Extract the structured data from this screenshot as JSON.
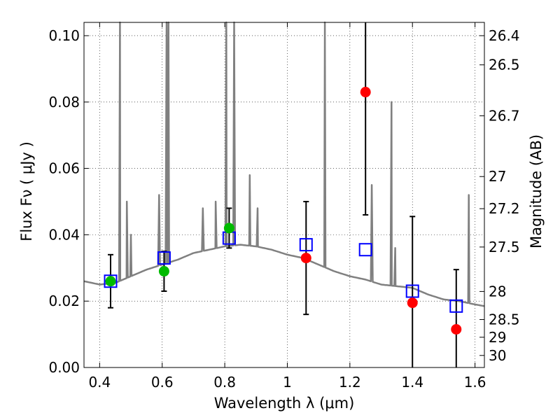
{
  "chart_data": {
    "type": "scatter",
    "title": "",
    "xlabel": "Wavelength  λ (μm)",
    "ylabel": "Flux  Fν ( μJy )",
    "ylabel_right": "Magnitude (AB)",
    "xlim": [
      0.35,
      1.63
    ],
    "ylim": [
      0.0,
      0.104
    ],
    "grid": true,
    "x_ticks": [
      "0.4",
      "0.6",
      "0.8",
      "1",
      "1.2",
      "1.4",
      "1.6"
    ],
    "x_tick_values": [
      0.4,
      0.6,
      0.8,
      1.0,
      1.2,
      1.4,
      1.6
    ],
    "y_ticks": [
      "0.00",
      "0.02",
      "0.04",
      "0.06",
      "0.08",
      "0.10"
    ],
    "y_tick_values": [
      0.0,
      0.02,
      0.04,
      0.06,
      0.08,
      0.1
    ],
    "right_ticks": [
      "26.4",
      "26.5",
      "26.7",
      "27",
      "27.2",
      "27.5",
      "28",
      "28.5",
      "29",
      "30"
    ],
    "right_tick_values": [
      26.4,
      26.5,
      26.7,
      27.0,
      27.2,
      27.5,
      28.0,
      28.5,
      29.0,
      30.0
    ],
    "colors": {
      "model": "#808080",
      "model_photometry": "#0000ff",
      "optical_observed": "#00bb00",
      "nir_observed": "#ff0000",
      "errorbar": "#000000"
    },
    "model_photometry": {
      "x": [
        0.435,
        0.606,
        0.814,
        1.06,
        1.25,
        1.4,
        1.54
      ],
      "y": [
        0.026,
        0.033,
        0.039,
        0.037,
        0.0355,
        0.023,
        0.0185
      ]
    },
    "observed_optical": {
      "x": [
        0.435,
        0.606,
        0.814
      ],
      "y": [
        0.026,
        0.029,
        0.042
      ],
      "err_low": [
        0.018,
        0.023,
        0.036
      ],
      "err_high": [
        0.034,
        0.035,
        0.048
      ]
    },
    "observed_nir": {
      "x": [
        1.06,
        1.25,
        1.4,
        1.54
      ],
      "y": [
        0.033,
        0.083,
        0.0195,
        0.0115
      ],
      "err_low": [
        0.016,
        0.046,
        0.0,
        0.0
      ],
      "err_high": [
        0.05,
        0.104,
        0.0455,
        0.0295
      ]
    },
    "model_continuum": {
      "x": [
        0.35,
        0.4,
        0.45,
        0.5,
        0.55,
        0.6,
        0.65,
        0.7,
        0.75,
        0.8,
        0.85,
        0.9,
        0.95,
        1.0,
        1.05,
        1.1,
        1.15,
        1.2,
        1.25,
        1.3,
        1.35,
        1.4,
        1.45,
        1.5,
        1.55,
        1.6,
        1.63
      ],
      "y": [
        0.026,
        0.025,
        0.0255,
        0.0275,
        0.0295,
        0.031,
        0.0325,
        0.0345,
        0.0355,
        0.0365,
        0.037,
        0.0365,
        0.0355,
        0.034,
        0.033,
        0.031,
        0.029,
        0.0275,
        0.0265,
        0.025,
        0.0245,
        0.024,
        0.022,
        0.0205,
        0.02,
        0.019,
        0.0185
      ]
    },
    "model_lines": [
      {
        "x": 0.465,
        "peak": 0.105
      },
      {
        "x": 0.487,
        "peak": 0.05
      },
      {
        "x": 0.5,
        "peak": 0.04
      },
      {
        "x": 0.59,
        "peak": 0.052
      },
      {
        "x": 0.614,
        "peak": 0.105
      },
      {
        "x": 0.62,
        "peak": 0.105
      },
      {
        "x": 0.73,
        "peak": 0.048
      },
      {
        "x": 0.771,
        "peak": 0.05
      },
      {
        "x": 0.805,
        "peak": 0.105
      },
      {
        "x": 0.83,
        "peak": 0.105
      },
      {
        "x": 0.88,
        "peak": 0.058
      },
      {
        "x": 0.905,
        "peak": 0.048
      },
      {
        "x": 1.12,
        "peak": 0.105
      },
      {
        "x": 1.27,
        "peak": 0.055
      },
      {
        "x": 1.333,
        "peak": 0.08
      },
      {
        "x": 1.345,
        "peak": 0.036
      },
      {
        "x": 1.58,
        "peak": 0.052
      }
    ]
  }
}
